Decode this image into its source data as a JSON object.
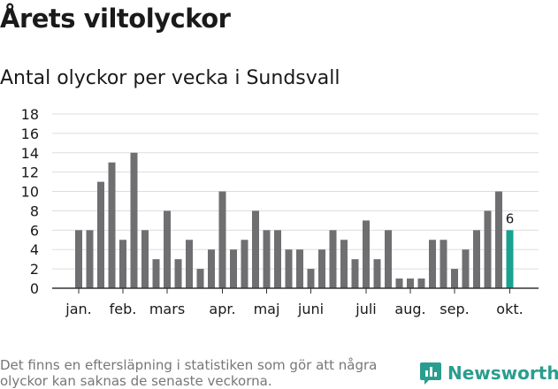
{
  "header": {
    "title": "Årets viltolyckor",
    "subtitle": "Antal olyckor per vecka i Sundsvall"
  },
  "chart_data": {
    "type": "bar",
    "title": "Årets viltolyckor",
    "subtitle": "Antal olyckor per vecka i Sundsvall",
    "xlabel": "",
    "ylabel": "",
    "ylim": [
      0,
      18
    ],
    "yticks": [
      0,
      2,
      4,
      6,
      8,
      10,
      12,
      14,
      16,
      18
    ],
    "grid": true,
    "series": [
      {
        "name": "Antal olyckor",
        "values": [
          6,
          6,
          11,
          13,
          5,
          14,
          6,
          3,
          8,
          3,
          5,
          2,
          4,
          10,
          4,
          5,
          8,
          6,
          6,
          4,
          4,
          2,
          4,
          6,
          5,
          3,
          7,
          3,
          6,
          1,
          1,
          1,
          5,
          5,
          2,
          4,
          6,
          8,
          10,
          6
        ]
      }
    ],
    "highlight_index": 39,
    "highlight_label": "6",
    "month_labels": [
      {
        "label": "jan.",
        "week": 1
      },
      {
        "label": "feb.",
        "week": 5
      },
      {
        "label": "mars",
        "week": 9
      },
      {
        "label": "apr.",
        "week": 14
      },
      {
        "label": "maj",
        "week": 18
      },
      {
        "label": "juni",
        "week": 22
      },
      {
        "label": "juli",
        "week": 27
      },
      {
        "label": "aug.",
        "week": 31
      },
      {
        "label": "sep.",
        "week": 35
      },
      {
        "label": "okt.",
        "week": 40
      }
    ],
    "colors": {
      "bar": "#6f6f72",
      "highlight": "#1aa290",
      "grid": "#dddddd",
      "axis": "#333333"
    }
  },
  "footer": {
    "note": "Det finns en eftersläpning i statistiken som gör att några olyckor kan saknas de senaste veckorna.",
    "brand": "Newsworthy",
    "brand_icon": "newsworthy-chart-icon"
  }
}
